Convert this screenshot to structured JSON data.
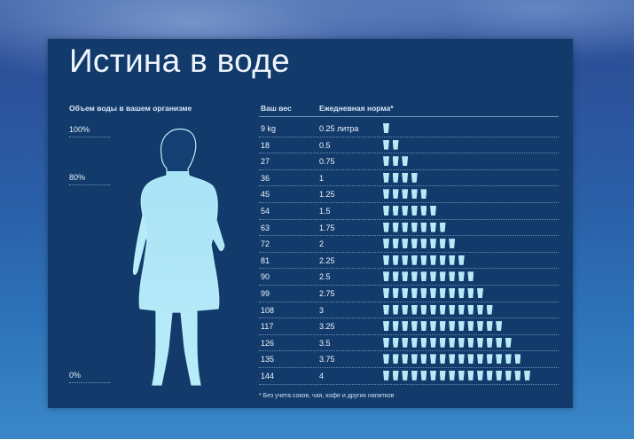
{
  "title": "Истина в воде",
  "left_header": "Объем воды в вашем организме",
  "percent_labels": {
    "p100": "100%",
    "p80": "80%",
    "p0": "0%"
  },
  "table": {
    "col_weight": "Ваш вес",
    "col_norm": "Ежедневная норма*",
    "rows": [
      {
        "weight": "9 kg",
        "norm": "0.25 литра",
        "cups": 1
      },
      {
        "weight": "18",
        "norm": "0.5",
        "cups": 2
      },
      {
        "weight": "27",
        "norm": "0.75",
        "cups": 3
      },
      {
        "weight": "36",
        "norm": "1",
        "cups": 4
      },
      {
        "weight": "45",
        "norm": "1.25",
        "cups": 5
      },
      {
        "weight": "54",
        "norm": "1.5",
        "cups": 6
      },
      {
        "weight": "63",
        "norm": "1.75",
        "cups": 7
      },
      {
        "weight": "72",
        "norm": "2",
        "cups": 8
      },
      {
        "weight": "81",
        "norm": "2.25",
        "cups": 9
      },
      {
        "weight": "90",
        "norm": "2.5",
        "cups": 10
      },
      {
        "weight": "99",
        "norm": "2.75",
        "cups": 11
      },
      {
        "weight": "108",
        "norm": "3",
        "cups": 12
      },
      {
        "weight": "117",
        "norm": "3.25",
        "cups": 13
      },
      {
        "weight": "126",
        "norm": "3.5",
        "cups": 14
      },
      {
        "weight": "135",
        "norm": "3.75",
        "cups": 15
      },
      {
        "weight": "144",
        "norm": "4",
        "cups": 16
      }
    ]
  },
  "footnote": "* Без учета соков, чая, кофе и других напитков",
  "icons": {
    "person": "woman-silhouette-icon",
    "cup": "water-glass-icon"
  },
  "colors": {
    "panel": "#123b6c",
    "water": "#b8e9f7",
    "text": "#eef4fb"
  }
}
